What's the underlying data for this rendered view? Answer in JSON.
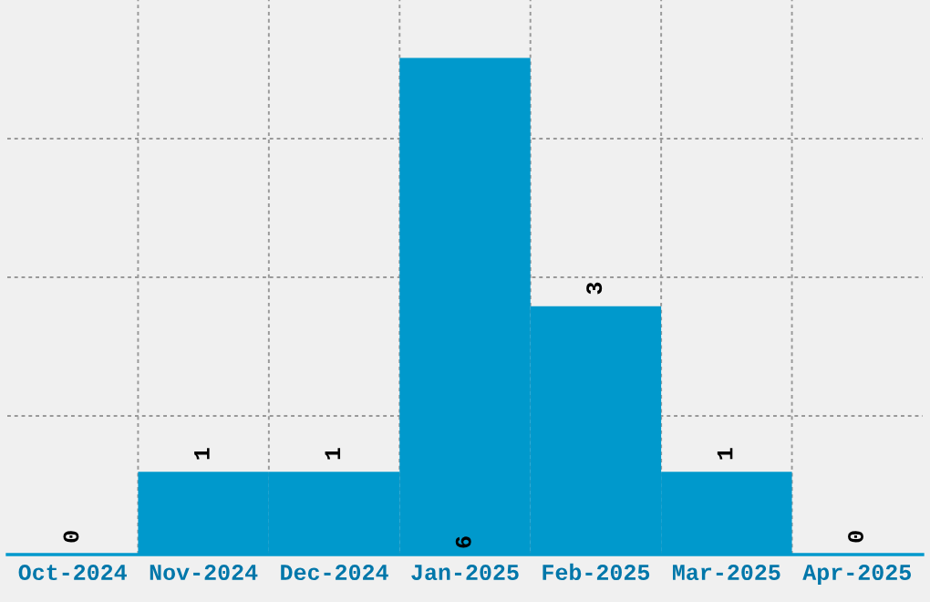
{
  "chart_data": {
    "type": "bar",
    "categories": [
      "Oct-2024",
      "Nov-2024",
      "Dec-2024",
      "Jan-2025",
      "Feb-2025",
      "Mar-2025",
      "Apr-2025"
    ],
    "values": [
      0,
      1,
      1,
      6,
      3,
      1,
      0
    ],
    "color": "#0099cc",
    "data_labels": true,
    "ylim": [
      0,
      6.7
    ],
    "yticks": [
      {
        "value": 1.675,
        "label": null
      },
      {
        "value": 3.35,
        "label": null
      },
      {
        "value": 5.025,
        "label": null
      }
    ],
    "tick_labels": "x",
    "grid": true,
    "legend": false
  }
}
